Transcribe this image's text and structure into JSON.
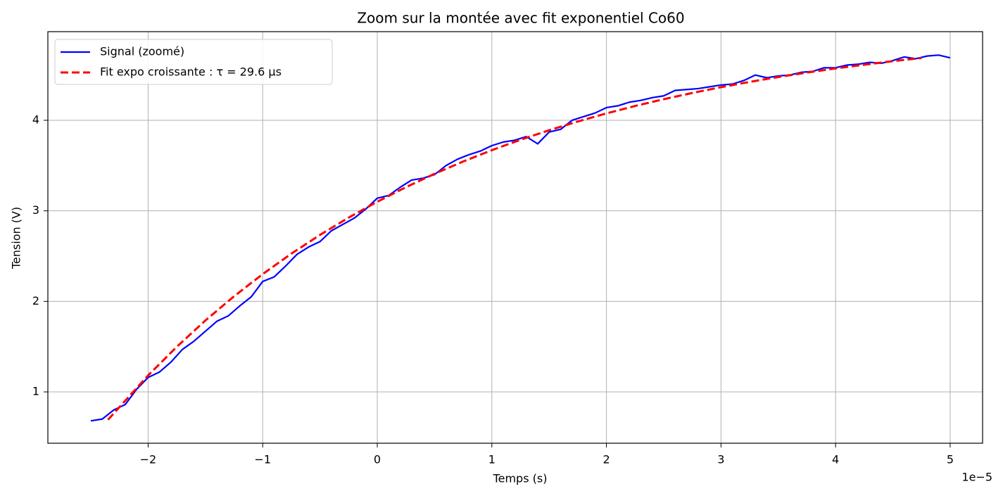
{
  "chart_data": {
    "type": "line",
    "title": "Zoom sur la montée avec fit exponentiel Co60",
    "x_label": "Temps (s)",
    "y_label": "Tension (V)",
    "x_offset_label": "1e−5",
    "xlim": [
      -2.875,
      5.283
    ],
    "ylim": [
      0.433,
      4.979
    ],
    "xticks": [
      {
        "value": -2,
        "label": "−2"
      },
      {
        "value": -1,
        "label": "−1"
      },
      0,
      1,
      2,
      3,
      4,
      5
    ],
    "yticks": [
      1,
      2,
      3,
      4
    ],
    "grid": true,
    "legend": "upper left",
    "series": [
      {
        "name": "Signal (zoomé)",
        "color": "#0000ff",
        "linestyle": "solid",
        "x": [
          -2.5,
          -2.4,
          -2.3,
          -2.2,
          -2.1,
          -2.0,
          -1.9,
          -1.8,
          -1.7,
          -1.6,
          -1.5,
          -1.4,
          -1.3,
          -1.2,
          -1.1,
          -1.0,
          -0.9,
          -0.8,
          -0.7,
          -0.6,
          -0.5,
          -0.4,
          -0.3,
          -0.2,
          -0.1,
          0,
          0.1,
          0.2,
          0.3,
          0.4,
          0.5,
          0.6,
          0.7,
          0.8,
          0.9,
          1.0,
          1.1,
          1.2,
          1.3,
          1.4,
          1.5,
          1.6,
          1.7,
          1.8,
          1.9,
          2.0,
          2.1,
          2.2,
          2.3,
          2.4,
          2.5,
          2.6,
          2.7,
          2.8,
          2.9,
          3.0,
          3.1,
          3.2,
          3.3,
          3.4,
          3.5,
          3.6,
          3.7,
          3.8,
          3.9,
          4.0,
          4.1,
          4.2,
          4.3,
          4.4,
          4.5,
          4.6,
          4.7,
          4.8,
          4.9,
          5.0
        ],
        "values": [
          0.68,
          0.7,
          0.8,
          0.86,
          1.03,
          1.16,
          1.22,
          1.33,
          1.47,
          1.56,
          1.67,
          1.78,
          1.84,
          1.95,
          2.05,
          2.22,
          2.27,
          2.39,
          2.52,
          2.6,
          2.66,
          2.78,
          2.85,
          2.92,
          3.02,
          3.14,
          3.17,
          3.26,
          3.34,
          3.36,
          3.4,
          3.5,
          3.57,
          3.62,
          3.66,
          3.72,
          3.76,
          3.78,
          3.82,
          3.74,
          3.87,
          3.9,
          4.0,
          4.04,
          4.08,
          4.14,
          4.16,
          4.2,
          4.22,
          4.25,
          4.27,
          4.33,
          4.34,
          4.35,
          4.37,
          4.39,
          4.4,
          4.44,
          4.5,
          4.47,
          4.49,
          4.5,
          4.53,
          4.54,
          4.58,
          4.58,
          4.61,
          4.62,
          4.64,
          4.63,
          4.66,
          4.7,
          4.68,
          4.71,
          4.72,
          4.69
        ]
      },
      {
        "name": "Fit expo croissante : τ = 29.6 µs",
        "color": "#ff0000",
        "linestyle": "dashed",
        "x": [
          -2.35,
          -2.0,
          -1.75,
          -1.5,
          -1.25,
          -1.0,
          -0.75,
          -0.5,
          -0.25,
          0,
          0.25,
          0.5,
          0.75,
          1.0,
          1.25,
          1.5,
          1.75,
          2.0,
          2.25,
          2.5,
          2.75,
          3.0,
          3.25,
          3.5,
          3.75,
          4.0,
          4.25,
          4.5,
          4.75
        ],
        "values": [
          0.692,
          1.182,
          1.498,
          1.789,
          2.056,
          2.301,
          2.527,
          2.734,
          2.925,
          3.1,
          3.261,
          3.409,
          3.545,
          3.67,
          3.785,
          3.89,
          3.987,
          4.076,
          4.158,
          4.233,
          4.302,
          4.366,
          4.424,
          4.478,
          4.527,
          4.573,
          4.614,
          4.653,
          4.688
        ]
      }
    ]
  }
}
